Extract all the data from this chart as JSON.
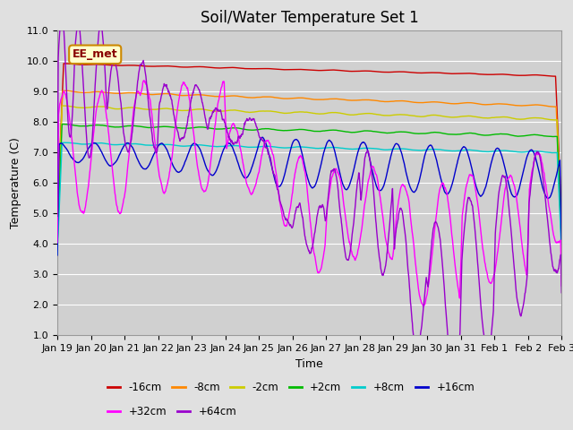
{
  "title": "Soil/Water Temperature Set 1",
  "xlabel": "Time",
  "ylabel": "Temperature (C)",
  "ylim": [
    1.0,
    11.0
  ],
  "yticks": [
    1.0,
    2.0,
    3.0,
    4.0,
    5.0,
    6.0,
    7.0,
    8.0,
    9.0,
    10.0,
    11.0
  ],
  "background_color": "#e0e0e0",
  "plot_bg_color": "#d0d0d0",
  "annotation_text": "EE_met",
  "annotation_bg": "#ffffcc",
  "annotation_border": "#cc8800",
  "annotation_text_color": "#880000",
  "legend_entries": [
    "-16cm",
    "-8cm",
    "-2cm",
    "+2cm",
    "+8cm",
    "+16cm",
    "+32cm",
    "+64cm"
  ],
  "line_colors": [
    "#cc0000",
    "#ff8800",
    "#cccc00",
    "#00bb00",
    "#00cccc",
    "#0000cc",
    "#ff00ff",
    "#9900cc"
  ],
  "grid_color": "#ffffff",
  "tick_label_fontsize": 8,
  "title_fontsize": 12,
  "figsize": [
    6.4,
    4.8
  ],
  "dpi": 100,
  "xtick_labels": [
    "Jan 19",
    "Jan 20",
    "Jan 21",
    "Jan 22",
    "Jan 23",
    "Jan 24",
    "Jan 25",
    "Jan 26",
    "Jan 27",
    "Jan 28",
    "Jan 29",
    "Jan 30",
    "Jan 31",
    "Feb 1",
    "Feb 2",
    "Feb 3"
  ]
}
